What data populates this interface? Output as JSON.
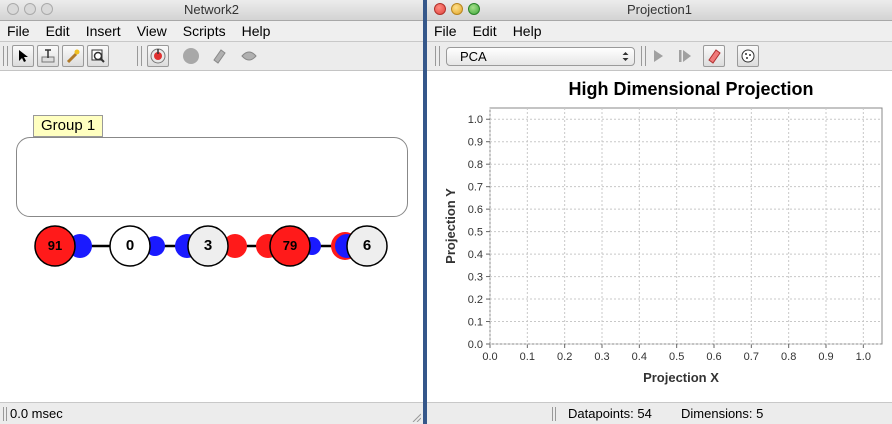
{
  "network_window": {
    "title": "Network2",
    "menu": [
      "File",
      "Edit",
      "Insert",
      "View",
      "Scripts",
      "Help"
    ],
    "tools": [
      {
        "icon": "arrow-select-icon"
      },
      {
        "icon": "text-tool-icon"
      },
      {
        "icon": "wand-tool-icon"
      },
      {
        "icon": "zoom-tool-icon"
      },
      {
        "icon": "run-network-icon"
      },
      {
        "icon": "stop-network-icon"
      },
      {
        "icon": "clear-eraser-icon"
      },
      {
        "icon": "randomize-icon"
      }
    ],
    "group_label": "Group 1",
    "neurons": [
      {
        "label": "91",
        "activation": "positive"
      },
      {
        "label": "0",
        "activation": "neutral"
      },
      {
        "label": "3",
        "activation": "neutral"
      },
      {
        "label": "79",
        "activation": "positive"
      },
      {
        "label": "6",
        "activation": "neutral"
      }
    ],
    "status": "0.0 msec"
  },
  "projection_window": {
    "title": "Projection1",
    "menu": [
      "File",
      "Edit",
      "Help"
    ],
    "method_select": "PCA",
    "tools": [
      {
        "icon": "play-icon"
      },
      {
        "icon": "step-icon"
      },
      {
        "icon": "clear-eraser-icon"
      },
      {
        "icon": "randomize-icon"
      }
    ],
    "status_datapoints": "Datapoints: 54",
    "status_dimensions": "Dimensions: 5"
  },
  "colors": {
    "positive": "#ff1a1a",
    "negative": "#1a1aff",
    "neutral": "#ffffff",
    "group_label_bg": "#ffffc0",
    "grid": "#c8c8c8"
  },
  "chart_data": {
    "type": "scatter",
    "title": "High Dimensional Projection",
    "xlabel": "Projection X",
    "ylabel": "Projection Y",
    "xlim": [
      0.0,
      1.05
    ],
    "ylim": [
      0.0,
      1.05
    ],
    "xticks": [
      "0.0",
      "0.1",
      "0.2",
      "0.3",
      "0.4",
      "0.5",
      "0.6",
      "0.7",
      "0.8",
      "0.9",
      "1.0"
    ],
    "yticks": [
      "0.0",
      "0.1",
      "0.2",
      "0.3",
      "0.4",
      "0.5",
      "0.6",
      "0.7",
      "0.8",
      "0.9",
      "1.0"
    ],
    "grid": true,
    "series": []
  }
}
